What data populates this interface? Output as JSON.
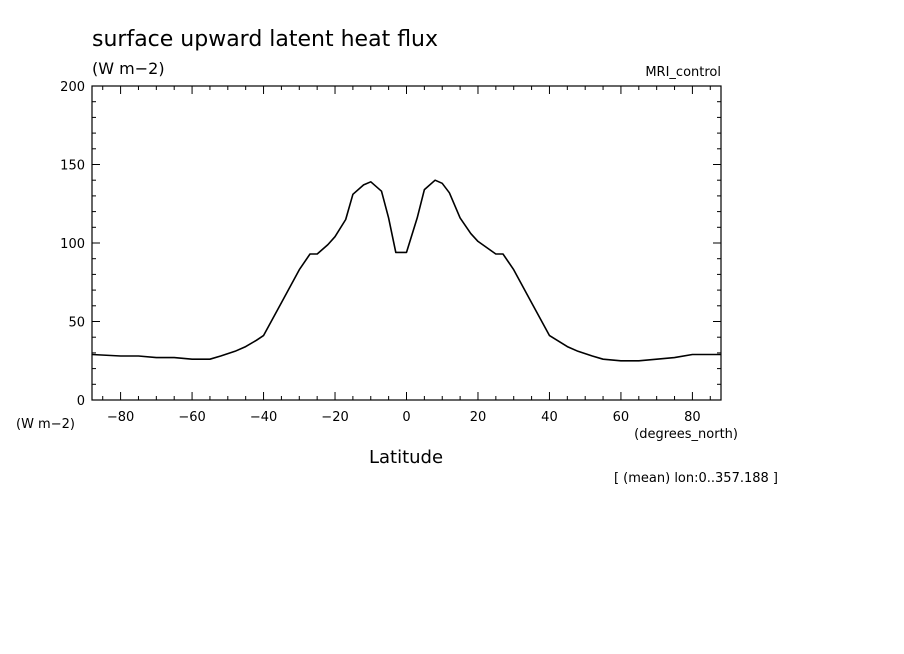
{
  "chart_data": {
    "type": "line",
    "title": "surface upward latent heat flux",
    "units_top": "(W m−2)",
    "units_left": "(W m−2)",
    "dataset_label": "MRI_control",
    "xlabel": "Latitude",
    "xunits": "(degrees_north)",
    "footnote": "[ (mean) lon:0..357.188 ]",
    "xlim": [
      -88,
      88
    ],
    "ylim": [
      0,
      200
    ],
    "xticks": [
      -80,
      -60,
      -40,
      -20,
      0,
      20,
      40,
      60,
      80
    ],
    "xtick_labels": [
      "−80",
      "−60",
      "−40",
      "−20",
      "0",
      "20",
      "40",
      "60",
      "80"
    ],
    "yticks": [
      0,
      50,
      100,
      150,
      200
    ],
    "ytick_labels": [
      "0",
      "50",
      "100",
      "150",
      "200"
    ],
    "x": [
      -88,
      -80,
      -75,
      -70,
      -65,
      -60,
      -55,
      -52,
      -48,
      -45,
      -42,
      -40,
      -35,
      -30,
      -27,
      -25,
      -22,
      -20,
      -17,
      -15,
      -12,
      -10,
      -7,
      -5,
      -3,
      0,
      3,
      5,
      8,
      10,
      12,
      15,
      18,
      20,
      25,
      27,
      30,
      35,
      40,
      45,
      48,
      52,
      55,
      60,
      65,
      70,
      75,
      80,
      88
    ],
    "series": [
      {
        "values": [
          29,
          28,
          28,
          27,
          27,
          26,
          26,
          28,
          31,
          34,
          38,
          41,
          62,
          83,
          93,
          93,
          99,
          104,
          115,
          131,
          137,
          139,
          133,
          116,
          94,
          94,
          116,
          134,
          140,
          138,
          132,
          116,
          106,
          101,
          93,
          93,
          83,
          62,
          41,
          34,
          31,
          28,
          26,
          25,
          25,
          26,
          27,
          29,
          29
        ],
        "color": "#000000"
      }
    ]
  }
}
